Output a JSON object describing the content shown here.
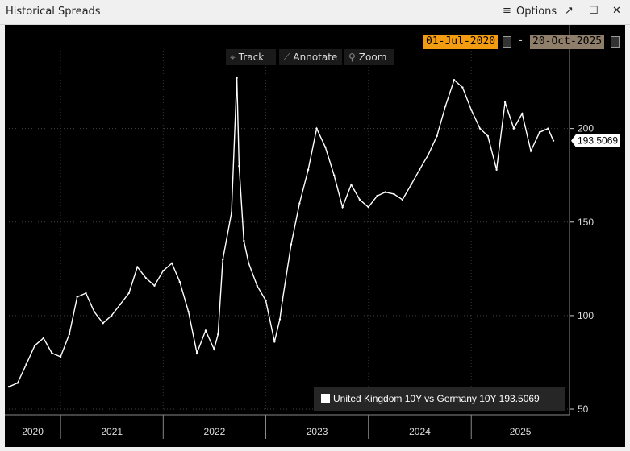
{
  "window": {
    "title": "Historical Spreads",
    "options_label": "Options",
    "icons": [
      "menu-icon",
      "popout-icon",
      "maximize-icon",
      "close-icon"
    ],
    "popout_glyph": "↗",
    "maximize_glyph": "☐",
    "close_glyph": "✕",
    "menu_glyph": "≡"
  },
  "date_range": {
    "start": "01-Jul-2020",
    "separator": "-",
    "end": "20-Oct-2025"
  },
  "toolbar": {
    "track": "Track",
    "annotate": "Annotate",
    "zoom": "Zoom",
    "track_glyph": "⌖",
    "annotate_glyph": "⟋",
    "zoom_glyph": "⚲"
  },
  "legend": {
    "label": "United Kingdom 10Y vs Germany 10Y 193.5069"
  },
  "last_value_label": "193.5069",
  "colors": {
    "background": "#000000",
    "line": "#ffffff",
    "start_date_bg": "#f39c12",
    "end_date_bg": "#8f7f6a"
  },
  "chart_data": {
    "type": "line",
    "title": "",
    "xlabel": "",
    "ylabel": "",
    "x_ticks": [
      "2020",
      "2021",
      "2022",
      "2023",
      "2024",
      "2025"
    ],
    "y_ticks": [
      50,
      100,
      150,
      200
    ],
    "ylim": [
      47,
      233
    ],
    "grid": true,
    "series": [
      {
        "name": "United Kingdom 10Y vs Germany 10Y",
        "x": [
          "2020-07-01",
          "2020-08-01",
          "2020-09-01",
          "2020-10-01",
          "2020-11-01",
          "2020-12-01",
          "2021-01-01",
          "2021-02-01",
          "2021-03-01",
          "2021-04-01",
          "2021-05-01",
          "2021-06-01",
          "2021-07-01",
          "2021-08-01",
          "2021-09-01",
          "2021-10-01",
          "2021-11-01",
          "2021-12-01",
          "2022-01-01",
          "2022-02-01",
          "2022-03-01",
          "2022-04-01",
          "2022-05-01",
          "2022-06-01",
          "2022-07-01",
          "2022-07-15",
          "2022-08-01",
          "2022-09-01",
          "2022-09-20",
          "2022-09-28",
          "2022-10-15",
          "2022-11-01",
          "2022-12-01",
          "2023-01-01",
          "2023-02-01",
          "2023-02-20",
          "2023-03-01",
          "2023-04-01",
          "2023-05-01",
          "2023-06-01",
          "2023-07-01",
          "2023-08-01",
          "2023-09-01",
          "2023-10-01",
          "2023-11-01",
          "2023-12-01",
          "2024-01-01",
          "2024-02-01",
          "2024-03-01",
          "2024-04-01",
          "2024-05-01",
          "2024-06-01",
          "2024-07-01",
          "2024-08-01",
          "2024-09-01",
          "2024-10-01",
          "2024-11-01",
          "2024-12-01",
          "2025-01-01",
          "2025-02-01",
          "2025-03-01",
          "2025-04-01",
          "2025-05-01",
          "2025-06-01",
          "2025-07-01",
          "2025-08-01",
          "2025-09-01",
          "2025-10-01",
          "2025-10-20"
        ],
        "values": [
          62,
          64,
          74,
          84,
          88,
          80,
          78,
          90,
          110,
          112,
          102,
          96,
          100,
          106,
          112,
          126,
          120,
          116,
          124,
          128,
          118,
          102,
          80,
          92,
          82,
          90,
          130,
          155,
          227,
          180,
          140,
          128,
          116,
          108,
          86,
          98,
          108,
          138,
          160,
          178,
          200,
          190,
          175,
          158,
          170,
          162,
          158,
          164,
          166,
          165,
          162,
          170,
          178,
          186,
          196,
          212,
          226,
          222,
          210,
          200,
          196,
          178,
          214,
          200,
          208,
          188,
          198,
          200,
          193.5069
        ]
      }
    ]
  }
}
